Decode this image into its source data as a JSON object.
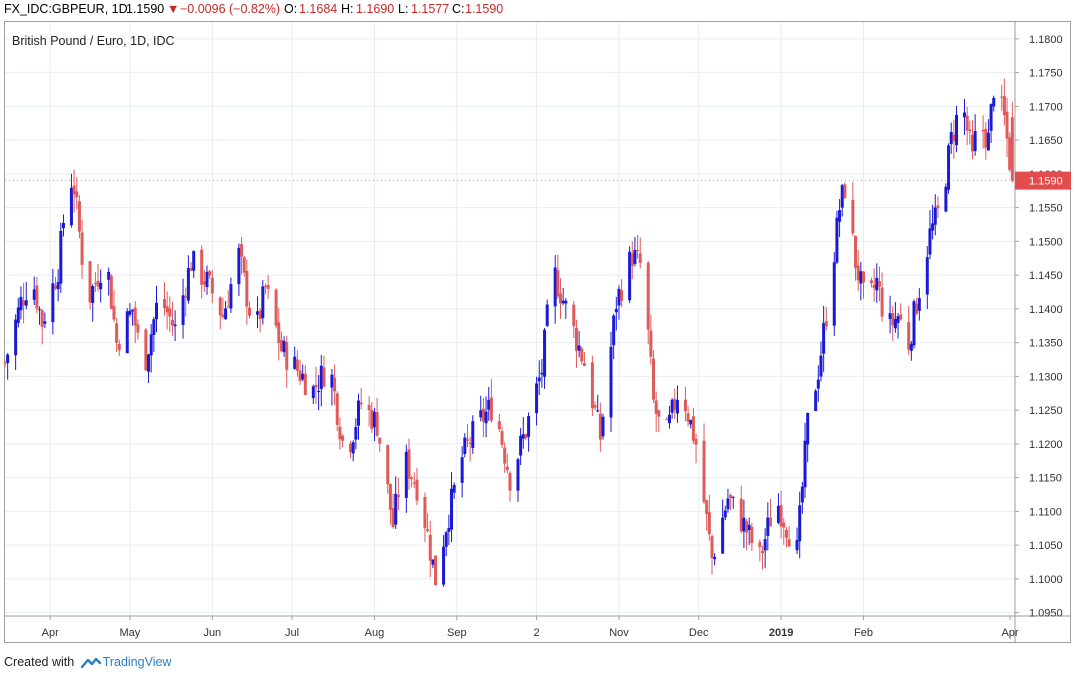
{
  "header": {
    "symbol": "FX_IDC:GBPEUR, 1D",
    "last": "1.1590",
    "change_arrow": "▼",
    "change": "−0.0096 (−0.82%)",
    "o_label": "O:",
    "o_value": "1.1684",
    "h_label": "H:",
    "h_value": "1.1690",
    "l_label": "L:",
    "l_value": "1.1577",
    "c_label": "C:",
    "c_value": "1.1590"
  },
  "footer": {
    "created_with": "Created with",
    "brand": "TradingView"
  },
  "colors": {
    "up": "#1a1ad6",
    "down": "#e05a5a",
    "grid": "#e6eef5",
    "price_tag": "#e34c4c"
  },
  "chart_data": {
    "type": "candlestick",
    "title": "British Pound / Euro, 1D, IDC",
    "ylim": [
      1.0945,
      1.1825
    ],
    "yticks": [
      1.095,
      1.1,
      1.105,
      1.11,
      1.115,
      1.12,
      1.125,
      1.13,
      1.135,
      1.14,
      1.145,
      1.15,
      1.155,
      1.16,
      1.165,
      1.17,
      1.175,
      1.18
    ],
    "ytick_labels": [
      "1.0950",
      "1.1000",
      "1.1050",
      "1.1100",
      "1.1150",
      "1.1200",
      "1.1250",
      "1.1300",
      "1.1350",
      "1.1400",
      "1.1450",
      "1.1500",
      "1.1550",
      "1.1600",
      "1.1650",
      "1.1700",
      "1.1750",
      "1.1800"
    ],
    "last_price_label": "1.1590",
    "last_price": 1.159,
    "x_start": "2018-03-15",
    "xlim_days": [
      0,
      380
    ],
    "xticks": [
      {
        "label": "Apr",
        "day": 17,
        "bold": false
      },
      {
        "label": "May",
        "day": 47,
        "bold": false
      },
      {
        "label": "Jun",
        "day": 78,
        "bold": false
      },
      {
        "label": "Jul",
        "day": 108,
        "bold": false
      },
      {
        "label": "Aug",
        "day": 139,
        "bold": false
      },
      {
        "label": "Sep",
        "day": 170,
        "bold": false
      },
      {
        "label": "2",
        "day": 200,
        "bold": false
      },
      {
        "label": "Nov",
        "day": 231,
        "bold": false
      },
      {
        "label": "Dec",
        "day": 261,
        "bold": false
      },
      {
        "label": "2019",
        "day": 292,
        "bold": true
      },
      {
        "label": "Feb",
        "day": 323,
        "bold": false
      },
      {
        "label": "Apr",
        "day": 382,
        "bold": false
      }
    ],
    "anchors": [
      [
        0,
        1.132
      ],
      [
        6,
        1.141
      ],
      [
        10,
        1.145
      ],
      [
        14,
        1.138
      ],
      [
        20,
        1.146
      ],
      [
        24,
        1.16
      ],
      [
        26,
        1.158
      ],
      [
        31,
        1.141
      ],
      [
        38,
        1.148
      ],
      [
        42,
        1.135
      ],
      [
        48,
        1.14
      ],
      [
        52,
        1.131
      ],
      [
        58,
        1.142
      ],
      [
        64,
        1.137
      ],
      [
        70,
        1.147
      ],
      [
        76,
        1.144
      ],
      [
        82,
        1.139
      ],
      [
        88,
        1.148
      ],
      [
        94,
        1.136
      ],
      [
        98,
        1.143
      ],
      [
        104,
        1.134
      ],
      [
        110,
        1.131
      ],
      [
        116,
        1.128
      ],
      [
        122,
        1.132
      ],
      [
        128,
        1.118
      ],
      [
        134,
        1.126
      ],
      [
        140,
        1.123
      ],
      [
        146,
        1.108
      ],
      [
        150,
        1.118
      ],
      [
        156,
        1.113
      ],
      [
        162,
        1.1
      ],
      [
        166,
        1.108
      ],
      [
        172,
        1.118
      ],
      [
        178,
        1.123
      ],
      [
        184,
        1.126
      ],
      [
        190,
        1.115
      ],
      [
        196,
        1.122
      ],
      [
        202,
        1.131
      ],
      [
        206,
        1.146
      ],
      [
        212,
        1.139
      ],
      [
        218,
        1.132
      ],
      [
        224,
        1.121
      ],
      [
        230,
        1.141
      ],
      [
        236,
        1.148
      ],
      [
        240,
        1.146
      ],
      [
        244,
        1.126
      ],
      [
        248,
        1.12
      ],
      [
        254,
        1.129
      ],
      [
        260,
        1.12
      ],
      [
        266,
        1.103
      ],
      [
        272,
        1.112
      ],
      [
        278,
        1.108
      ],
      [
        284,
        1.103
      ],
      [
        290,
        1.112
      ],
      [
        294,
        1.108
      ],
      [
        298,
        1.104
      ],
      [
        302,
        1.123
      ],
      [
        306,
        1.131
      ],
      [
        310,
        1.142
      ],
      [
        314,
        1.155
      ],
      [
        316,
        1.158
      ],
      [
        320,
        1.147
      ],
      [
        324,
        1.14
      ],
      [
        328,
        1.144
      ],
      [
        332,
        1.137
      ],
      [
        336,
        1.139
      ],
      [
        340,
        1.135
      ],
      [
        344,
        1.143
      ],
      [
        348,
        1.151
      ],
      [
        352,
        1.155
      ],
      [
        356,
        1.165
      ],
      [
        360,
        1.171
      ],
      [
        364,
        1.162
      ],
      [
        366,
        1.168
      ],
      [
        370,
        1.165
      ],
      [
        372,
        1.173
      ],
      [
        376,
        1.168
      ],
      [
        379,
        1.159
      ]
    ]
  }
}
